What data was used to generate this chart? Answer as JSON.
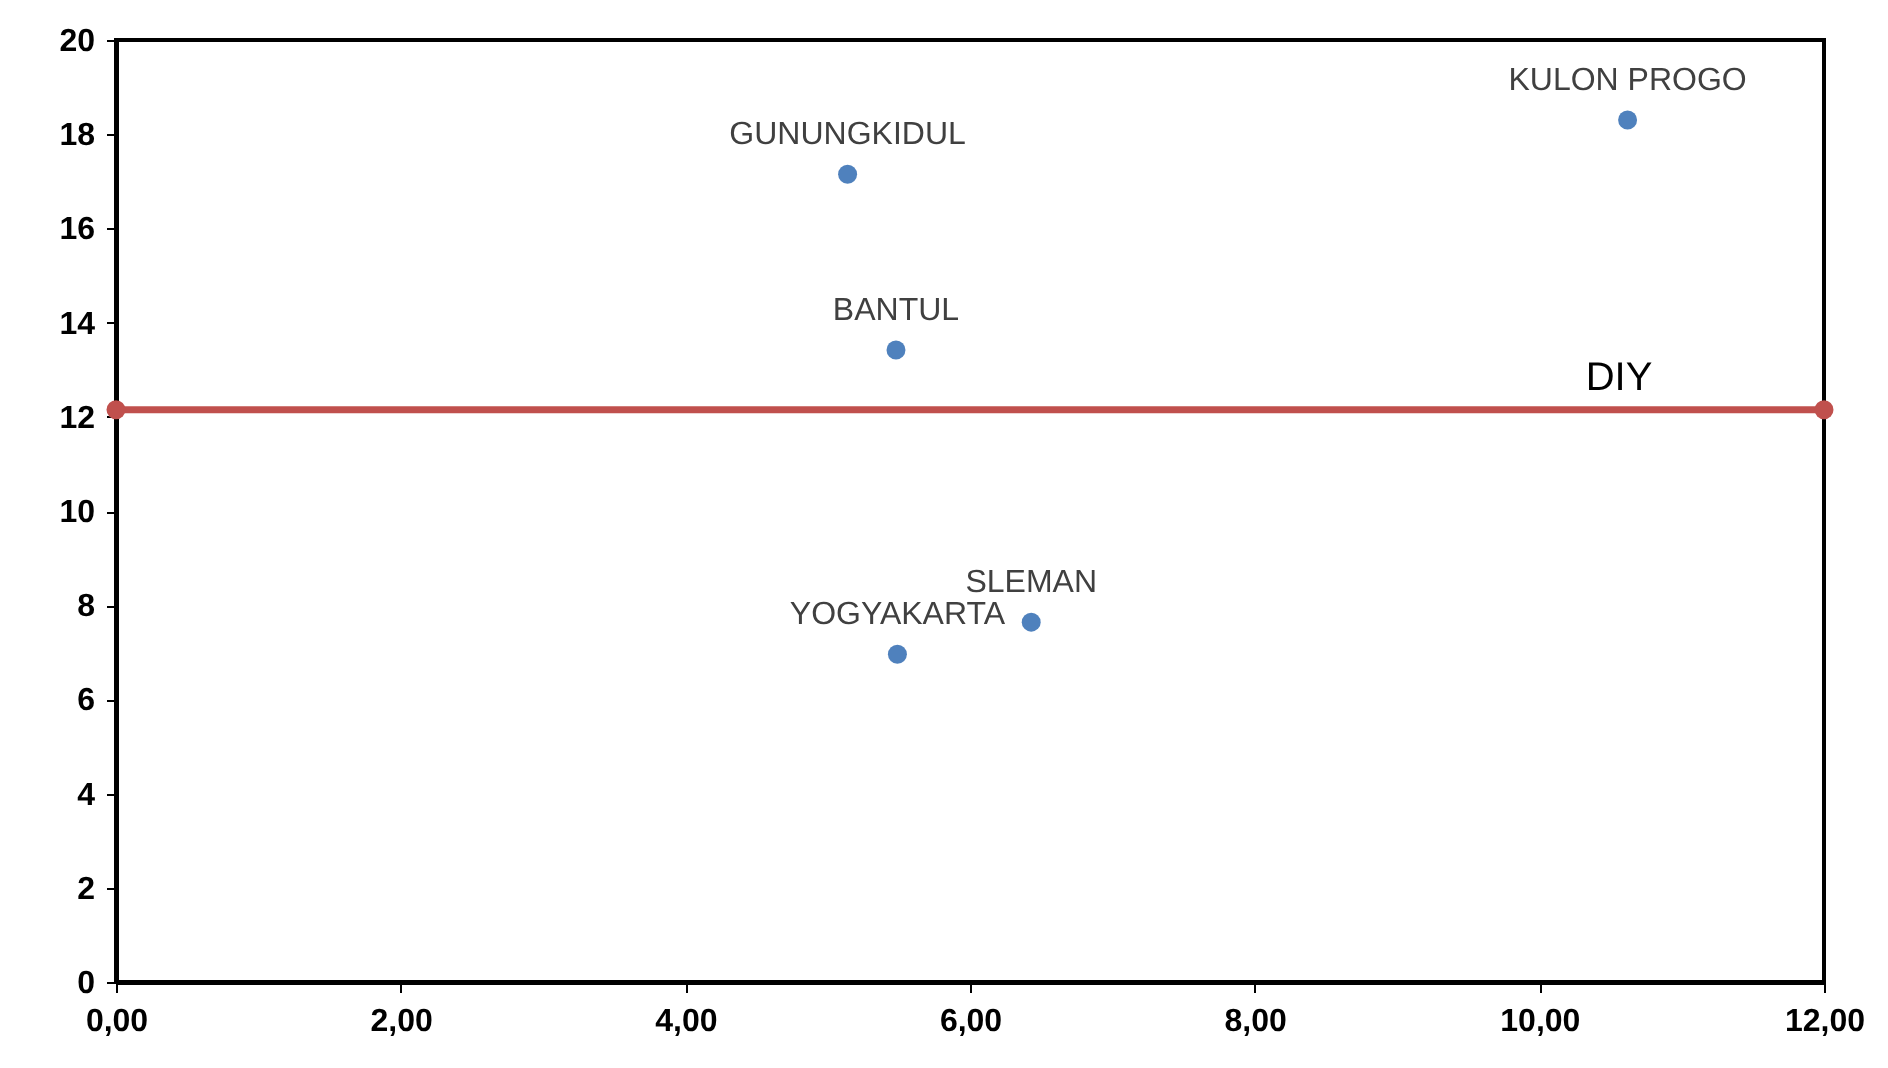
{
  "chart_data": {
    "type": "scatter",
    "xlim": [
      0,
      12
    ],
    "ylim": [
      0,
      20
    ],
    "xticks": [
      {
        "value": 0,
        "label": "0,00"
      },
      {
        "value": 2,
        "label": "2,00"
      },
      {
        "value": 4,
        "label": "4,00"
      },
      {
        "value": 6,
        "label": "6,00"
      },
      {
        "value": 8,
        "label": "8,00"
      },
      {
        "value": 10,
        "label": "10,00"
      },
      {
        "value": 12,
        "label": "12,00"
      }
    ],
    "yticks": [
      0,
      2,
      4,
      6,
      8,
      10,
      12,
      14,
      16,
      18,
      20
    ],
    "grid": false,
    "marker": "circle",
    "series": [
      {
        "color": "#4f81bd",
        "x": [
          5.14,
          10.62,
          5.48,
          5.49,
          6.43
        ],
        "values": [
          17.15,
          18.3,
          13.42,
          6.96,
          7.64
        ]
      },
      {
        "type": "line",
        "name": "DIY",
        "color": "#c0504d",
        "x": [
          0,
          12
        ],
        "values": [
          12.15,
          12.15
        ]
      }
    ],
    "annotations": [
      {
        "text": "GUNUNGKIDUL",
        "x": 5.14,
        "y": 17.15
      },
      {
        "text": "KULON PROGO",
        "x": 10.62,
        "y": 18.3
      },
      {
        "text": "BANTUL",
        "x": 5.48,
        "y": 13.42
      },
      {
        "text": "YOGYAKARTA",
        "x": 5.49,
        "y": 6.96
      },
      {
        "text": "SLEMAN",
        "x": 6.43,
        "y": 7.64
      }
    ]
  }
}
